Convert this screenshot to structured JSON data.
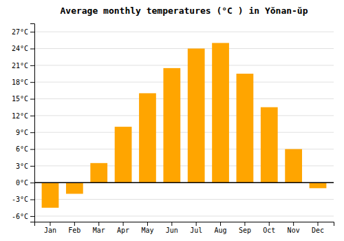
{
  "chart_data": {
    "type": "bar",
    "title": "Average monthly temperatures (°C ) in Yŏnan-ŭp",
    "categories": [
      "Jan",
      "Feb",
      "Mar",
      "Apr",
      "May",
      "Jun",
      "Jul",
      "Aug",
      "Sep",
      "Oct",
      "Nov",
      "Dec"
    ],
    "values": [
      -4.5,
      -2.0,
      3.5,
      10.0,
      16.0,
      20.5,
      24.0,
      25.0,
      19.5,
      13.5,
      6.0,
      -1.0
    ],
    "color": "#FFA500",
    "ylim": [
      -7,
      28.5
    ],
    "yticks": [
      {
        "value": -6,
        "label": "-6°C"
      },
      {
        "value": -3,
        "label": "-3°C"
      },
      {
        "value": 0,
        "label": "0°C"
      },
      {
        "value": 3,
        "label": "3°C"
      },
      {
        "value": 6,
        "label": "6°C"
      },
      {
        "value": 9,
        "label": "9°C"
      },
      {
        "value": 12,
        "label": "12°C"
      },
      {
        "value": 15,
        "label": "15°C"
      },
      {
        "value": 18,
        "label": "18°C"
      },
      {
        "value": 21,
        "label": "21°C"
      },
      {
        "value": 24,
        "label": "24°C"
      },
      {
        "value": 27,
        "label": "27°C"
      }
    ],
    "grid": true
  }
}
